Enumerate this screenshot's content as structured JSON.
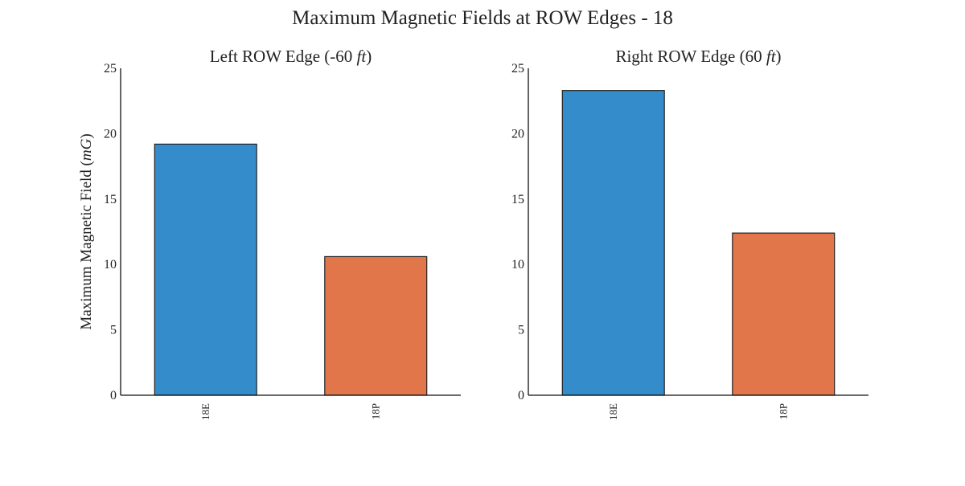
{
  "figure_title": "Maximum Magnetic Fields at ROW Edges - 18",
  "colors": {
    "18E": "#348ccb",
    "18P": "#e07649"
  },
  "chart_data": [
    {
      "type": "bar",
      "title": "Left ROW Edge (-60 ft)",
      "title_parts": {
        "pre": "Left ROW Edge (-60 ",
        "unit": "ft",
        "post": ")"
      },
      "ylabel": "Maximum Magnetic Field (mG)",
      "ylabel_parts": {
        "pre": "Maximum Magnetic Field (",
        "unit": "mG",
        "post": ")"
      },
      "xlabel": "",
      "categories": [
        "18E",
        "18P"
      ],
      "values": [
        19.2,
        10.6
      ],
      "ylim": [
        0,
        25
      ],
      "yticks": [
        0,
        5,
        10,
        15,
        20,
        25
      ],
      "grid": false
    },
    {
      "type": "bar",
      "title": "Right ROW Edge (60 ft)",
      "title_parts": {
        "pre": "Right ROW Edge (60 ",
        "unit": "ft",
        "post": ")"
      },
      "ylabel": "",
      "xlabel": "",
      "categories": [
        "18E",
        "18P"
      ],
      "values": [
        23.3,
        12.4
      ],
      "ylim": [
        0,
        25
      ],
      "yticks": [
        0,
        5,
        10,
        15,
        20,
        25
      ],
      "grid": false
    }
  ]
}
